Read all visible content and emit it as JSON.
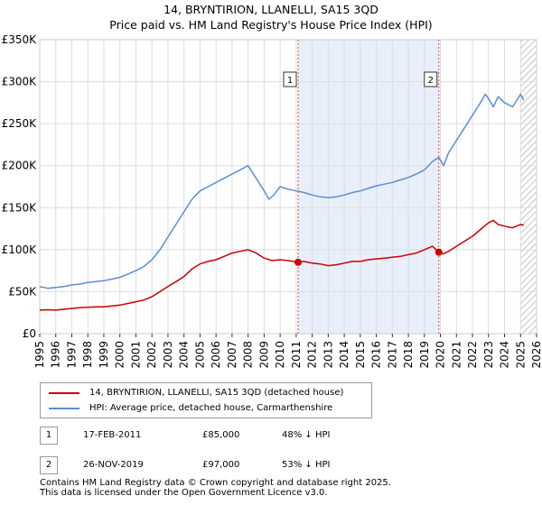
{
  "chart_data": {
    "type": "line",
    "title": "14, BRYNTIRION, LLANELLI, SA15 3QD",
    "subtitle": "Price paid vs. HM Land Registry's House Price Index (HPI)",
    "xlabel": "",
    "ylabel": "",
    "xlim": [
      1995,
      2026
    ],
    "ylim": [
      0,
      350000
    ],
    "y_ticks": [
      {
        "value": 0,
        "label": "£0"
      },
      {
        "value": 50000,
        "label": "£50K"
      },
      {
        "value": 100000,
        "label": "£100K"
      },
      {
        "value": 150000,
        "label": "£150K"
      },
      {
        "value": 200000,
        "label": "£200K"
      },
      {
        "value": 250000,
        "label": "£250K"
      },
      {
        "value": 300000,
        "label": "£300K"
      },
      {
        "value": 350000,
        "label": "£350K"
      }
    ],
    "x_ticks": [
      "1995",
      "1996",
      "1997",
      "1998",
      "1999",
      "2000",
      "2001",
      "2002",
      "2003",
      "2004",
      "2005",
      "2006",
      "2007",
      "2008",
      "2009",
      "2010",
      "2011",
      "2012",
      "2013",
      "2014",
      "2015",
      "2016",
      "2017",
      "2018",
      "2019",
      "2020",
      "2021",
      "2022",
      "2023",
      "2024",
      "2025",
      "2026"
    ],
    "grid": true,
    "shaded_period": [
      2011.12,
      2019.9
    ],
    "future_hatch_from": 2025.0,
    "series": [
      {
        "name": "14, BRYNTIRION, LLANELLI, SA15 3QD (detached house)",
        "color": "#cc0000",
        "x": [
          1995.0,
          1995.5,
          1996.0,
          1996.5,
          1997.0,
          1997.5,
          1998.0,
          1998.5,
          1999.0,
          1999.5,
          2000.0,
          2000.5,
          2001.0,
          2001.5,
          2002.0,
          2002.5,
          2003.0,
          2003.5,
          2004.0,
          2004.5,
          2005.0,
          2005.5,
          2006.0,
          2006.5,
          2007.0,
          2007.5,
          2008.0,
          2008.5,
          2009.0,
          2009.5,
          2010.0,
          2010.5,
          2011.12,
          2011.5,
          2012.0,
          2012.5,
          2013.0,
          2013.5,
          2014.0,
          2014.5,
          2015.0,
          2015.5,
          2016.0,
          2016.5,
          2017.0,
          2017.5,
          2018.0,
          2018.5,
          2019.0,
          2019.5,
          2019.9,
          2020.2,
          2020.5,
          2021.0,
          2021.5,
          2022.0,
          2022.5,
          2023.0,
          2023.3,
          2023.6,
          2024.0,
          2024.5,
          2025.0,
          2025.2
        ],
        "values": [
          28000,
          28500,
          28000,
          29000,
          30000,
          31000,
          31500,
          32000,
          32000,
          33000,
          34000,
          36000,
          38000,
          40000,
          44000,
          50000,
          56000,
          62000,
          68000,
          77000,
          83000,
          86000,
          88000,
          92000,
          96000,
          98000,
          100000,
          96000,
          90000,
          87000,
          88000,
          87000,
          85000,
          86000,
          84000,
          83000,
          81000,
          82000,
          84000,
          86000,
          86000,
          88000,
          89000,
          90000,
          91000,
          92000,
          94000,
          96000,
          100000,
          104000,
          97000,
          95000,
          98000,
          104000,
          110000,
          116000,
          124000,
          132000,
          135000,
          130000,
          128000,
          126000,
          130000,
          129000
        ]
      },
      {
        "name": "HPI: Average price, detached house, Carmarthenshire",
        "color": "#5a8fd0",
        "x": [
          1995.0,
          1995.5,
          1996.0,
          1996.5,
          1997.0,
          1997.5,
          1998.0,
          1998.5,
          1999.0,
          1999.5,
          2000.0,
          2000.5,
          2001.0,
          2001.5,
          2002.0,
          2002.5,
          2003.0,
          2003.5,
          2004.0,
          2004.5,
          2005.0,
          2005.5,
          2006.0,
          2006.5,
          2007.0,
          2007.5,
          2008.0,
          2008.5,
          2009.0,
          2009.3,
          2009.6,
          2010.0,
          2010.5,
          2011.0,
          2011.5,
          2012.0,
          2012.5,
          2013.0,
          2013.5,
          2014.0,
          2014.5,
          2015.0,
          2015.5,
          2016.0,
          2016.5,
          2017.0,
          2017.5,
          2018.0,
          2018.5,
          2019.0,
          2019.5,
          2019.9,
          2020.2,
          2020.5,
          2021.0,
          2021.5,
          2022.0,
          2022.5,
          2022.8,
          2023.0,
          2023.3,
          2023.6,
          2024.0,
          2024.5,
          2025.0,
          2025.2
        ],
        "values": [
          56000,
          54000,
          55000,
          56000,
          58000,
          59000,
          61000,
          62000,
          63000,
          65000,
          67000,
          71000,
          75000,
          80000,
          88000,
          100000,
          115000,
          130000,
          145000,
          160000,
          170000,
          175000,
          180000,
          185000,
          190000,
          195000,
          200000,
          185000,
          170000,
          160000,
          165000,
          175000,
          172000,
          170000,
          168000,
          165000,
          163000,
          162000,
          163000,
          165000,
          168000,
          170000,
          173000,
          176000,
          178000,
          180000,
          183000,
          186000,
          190000,
          195000,
          205000,
          210000,
          200000,
          215000,
          230000,
          245000,
          260000,
          275000,
          285000,
          280000,
          270000,
          282000,
          275000,
          270000,
          285000,
          278000
        ]
      }
    ],
    "markers": [
      {
        "label": "1",
        "x": 2011.12,
        "y": 85000
      },
      {
        "label": "2",
        "x": 2019.9,
        "y": 97000
      }
    ]
  },
  "legend": {
    "entries": [
      {
        "label": "14, BRYNTIRION, LLANELLI, SA15 3QD (detached house)",
        "color": "#cc0000"
      },
      {
        "label": "HPI: Average price, detached house, Carmarthenshire",
        "color": "#5a8fd0"
      }
    ]
  },
  "transactions": [
    {
      "num": "1",
      "date": "17-FEB-2011",
      "price": "£85,000",
      "hpi": "48% ↓ HPI"
    },
    {
      "num": "2",
      "date": "26-NOV-2019",
      "price": "£97,000",
      "hpi": "53% ↓ HPI"
    }
  ],
  "footer": {
    "line1": "Contains HM Land Registry data © Crown copyright and database right 2025.",
    "line2": "This data is licensed under the Open Government Licence v3.0."
  }
}
